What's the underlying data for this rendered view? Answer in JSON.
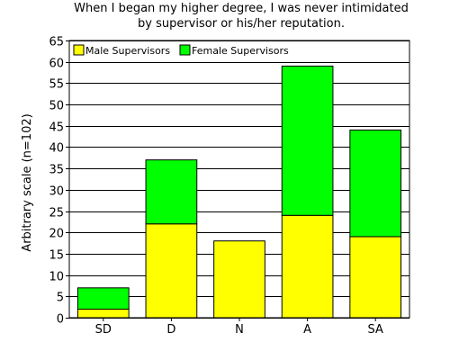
{
  "chart_data": {
    "type": "bar",
    "stacked": true,
    "title_lines": [
      "When I began my higher degree, I was never intimidated",
      "by supervisor or his/her reputation."
    ],
    "xlabel": "",
    "ylabel": "Arbitrary scale (n=102)",
    "categories": [
      "SD",
      "D",
      "N",
      "A",
      "SA"
    ],
    "series": [
      {
        "name": "Male Supervisors",
        "color": "#ffff00",
        "values": [
          2,
          22,
          18,
          24,
          19
        ]
      },
      {
        "name": "Female Supervisors",
        "color": "#00ff00",
        "values": [
          5,
          15,
          0,
          35,
          25
        ]
      }
    ],
    "ylim": [
      0,
      65
    ],
    "yticks": [
      0,
      5,
      10,
      15,
      20,
      25,
      30,
      35,
      40,
      45,
      50,
      55,
      60,
      65
    ],
    "grid": true,
    "legend_position": "top-left"
  }
}
